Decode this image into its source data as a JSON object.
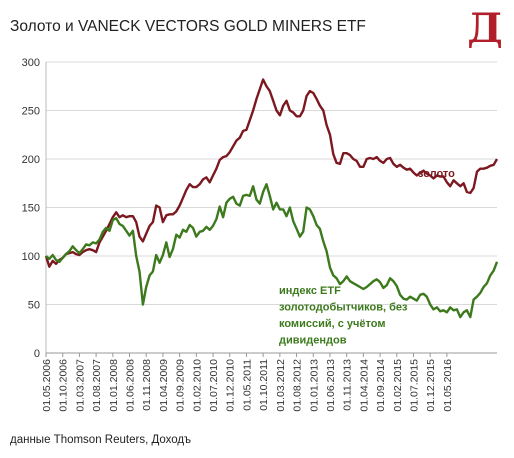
{
  "header": {
    "title": "Золото и VANECK VECTORS GOLD MINERS ETF",
    "logo_letter": "Д"
  },
  "footer": {
    "source": "данные Thomson Reuters, Доходъ"
  },
  "colors": {
    "gold": "#7b1820",
    "etf": "#3d7a1d",
    "grid": "#d9d9d9",
    "logo": "#b21f2a"
  },
  "chart_data": {
    "type": "line",
    "title": "Золото и VANECK VECTORS GOLD MINERS ETF",
    "xlabel": "",
    "ylabel": "",
    "ylim": [
      0,
      300
    ],
    "yticks": [
      0,
      50,
      100,
      150,
      200,
      250,
      300
    ],
    "grid": "horizontal",
    "legend": "inline labels",
    "x_start": "2006-05",
    "x_step_months": 1,
    "xticks": [
      "01.05.2006",
      "01.10.2006",
      "01.03.2007",
      "01.08.2007",
      "01.01.2008",
      "01.06.2008",
      "01.11.2008",
      "01.04.2009",
      "01.09.2009",
      "01.02.2010",
      "01.07.2010",
      "01.12.2010",
      "01.05.2011",
      "01.10.2011",
      "01.03.2012",
      "01.08.2012",
      "01.01.2013",
      "01.06.2013",
      "01.11.2013",
      "01.04.2014",
      "01.09.2014",
      "01.02.2015",
      "01.07.2015",
      "01.12.2015",
      "01.05.2016"
    ],
    "series": [
      {
        "name": "золото",
        "label_lines": [
          "золото"
        ],
        "values": [
          100,
          89,
          95,
          92,
          96,
          98,
          102,
          103,
          104,
          102,
          101,
          104,
          106,
          107,
          106,
          104,
          114,
          120,
          126,
          133,
          140,
          145,
          140,
          142,
          140,
          141,
          141,
          135,
          120,
          115,
          123,
          131,
          135,
          152,
          150,
          135,
          142,
          143,
          143,
          146,
          152,
          160,
          168,
          174,
          171,
          171,
          174,
          179,
          181,
          176,
          183,
          190,
          199,
          202,
          203,
          207,
          213,
          219,
          222,
          229,
          230,
          240,
          250,
          262,
          272,
          282,
          275,
          270,
          260,
          250,
          245,
          255,
          260,
          250,
          248,
          244,
          244,
          250,
          265,
          270,
          268,
          262,
          255,
          250,
          235,
          225,
          205,
          196,
          195,
          206,
          206,
          204,
          200,
          198,
          192,
          192,
          200,
          201,
          200,
          202,
          198,
          196,
          200,
          201,
          195,
          192,
          194,
          191,
          189,
          190,
          186,
          183,
          186,
          188,
          185,
          183,
          180,
          183,
          182,
          182,
          176,
          172,
          178,
          175,
          172,
          175,
          166,
          165,
          170,
          187,
          190,
          190,
          191,
          193,
          194,
          200
        ]
      },
      {
        "name": "индекс ETF золотодобытчиков, без комиссий, с учётом дивидендов",
        "label_lines": [
          "индекс ETF",
          "золотодобытчиков, без",
          "комиссий, с учётом",
          "дивидендов"
        ],
        "values": [
          100,
          97,
          101,
          96,
          94,
          98,
          102,
          105,
          110,
          106,
          103,
          107,
          112,
          111,
          114,
          113,
          117,
          125,
          129,
          126,
          137,
          139,
          133,
          131,
          126,
          121,
          126,
          100,
          84,
          50,
          68,
          80,
          84,
          101,
          93,
          101,
          114,
          99,
          107,
          122,
          119,
          127,
          125,
          132,
          129,
          120,
          125,
          126,
          130,
          127,
          131,
          138,
          151,
          140,
          155,
          159,
          161,
          154,
          152,
          162,
          163,
          162,
          172,
          158,
          154,
          166,
          174,
          162,
          148,
          155,
          148,
          148,
          141,
          150,
          136,
          128,
          120,
          125,
          150,
          148,
          141,
          132,
          128,
          115,
          105,
          88,
          80,
          77,
          71,
          74,
          79,
          74,
          72,
          70,
          68,
          66,
          68,
          71,
          74,
          76,
          73,
          67,
          70,
          77,
          74,
          69,
          60,
          56,
          55,
          58,
          56,
          54,
          60,
          61,
          58,
          50,
          45,
          47,
          43,
          44,
          42,
          47,
          44,
          45,
          37,
          42,
          44,
          37,
          55,
          58,
          62,
          68,
          72,
          80,
          85,
          94
        ]
      }
    ]
  }
}
